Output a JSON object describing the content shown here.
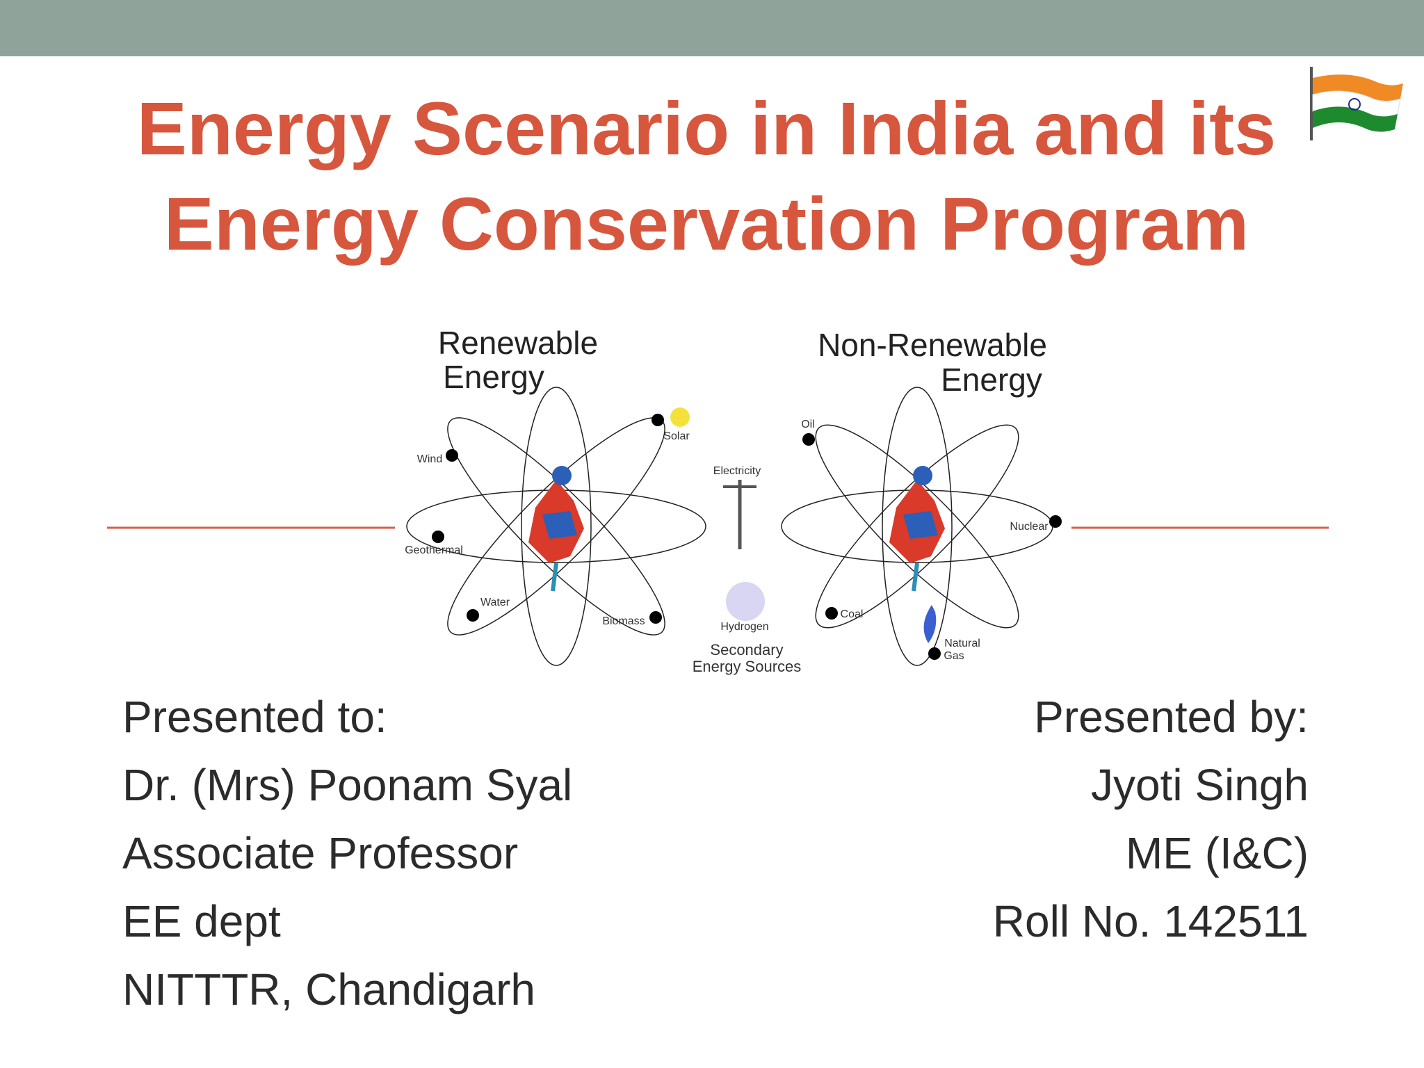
{
  "title": {
    "lines": [
      "Energy Scenario in India and its",
      "Energy Conservation Program"
    ]
  },
  "diagram": {
    "renewable": [
      "Renewable",
      "Energy"
    ],
    "non_renewable": [
      "Non-Renewable",
      "Energy"
    ],
    "secondary": [
      "Secondary",
      "Energy Sources"
    ],
    "labels": {
      "wind": "Wind",
      "solar": "Solar",
      "geothermal": "Geothermal",
      "water": "Water",
      "biomass": "Biomass",
      "electricity": "Electricity",
      "hydrogen": "Hydrogen",
      "oil": "Oil",
      "nuclear": "Nuclear",
      "coal": "Coal",
      "natural_gas": [
        "Natural",
        "Gas"
      ]
    }
  },
  "presented_to": [
    "Presented to:",
    "Dr. (Mrs) Poonam Syal",
    "Associate Professor",
    "EE dept",
    "NITTTR, Chandigarh"
  ],
  "presented_by": [
    "Presented by:",
    "Jyoti Singh",
    "ME (I&C)",
    "Roll No. 142511"
  ]
}
